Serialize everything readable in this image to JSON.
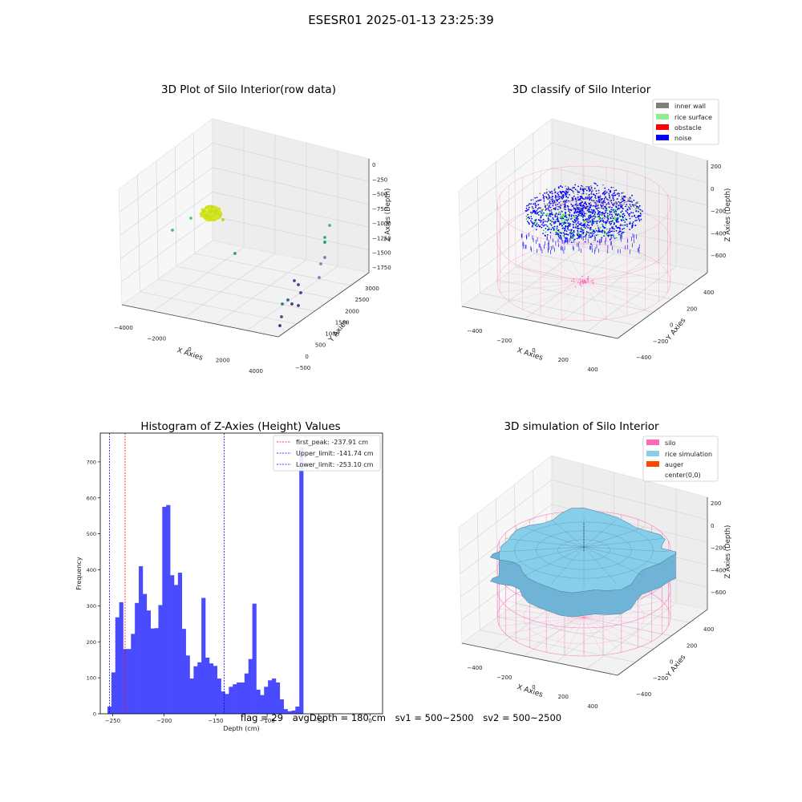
{
  "suptitle": "ESESR01 2025-01-13 23:25:39",
  "footer": {
    "flag": "flag = 29",
    "avg_depth": "avgDepth = 180 cm",
    "sv1": "sv1 = 500~2500",
    "sv2": "sv2 = 500~2500"
  },
  "colors": {
    "inner_wall": "#808080",
    "rice_surface": "#90ee90",
    "obstacle": "#ff0000",
    "noise": "#0000ff",
    "silo": "#ff69b4",
    "rice_simulation": "#87ceeb",
    "auger": "#ff4500",
    "histogram_bar": "#4a4aff"
  },
  "chart_data": [
    {
      "type": "scatter",
      "title": "3D Plot of Silo Interior(row data)",
      "xlabel": "X Axies",
      "ylabel": "Y Axies",
      "zlabel": "Z Axies (Depth)",
      "x_ticks": [
        "−4000",
        "−2000",
        "0",
        "2000",
        "4000"
      ],
      "y_ticks": [
        "−500",
        "0",
        "500",
        "1000",
        "1500",
        "2000",
        "2500",
        "3000"
      ],
      "z_ticks": [
        "0",
        "−250",
        "−500",
        "−750",
        "−1000",
        "−1250",
        "−1500",
        "−1750"
      ]
    },
    {
      "type": "scatter",
      "title": "3D classify of Silo Interior",
      "xlabel": "X Axies",
      "ylabel": "Y Axies",
      "zlabel": "Z Axies (Depth)",
      "x_ticks": [
        "−400",
        "−200",
        "0",
        "200",
        "400"
      ],
      "y_ticks": [
        "−400",
        "−200",
        "0",
        "200",
        "400"
      ],
      "z_ticks": [
        "200",
        "0",
        "−200",
        "−400",
        "−600"
      ],
      "legend": [
        "inner wall",
        "rice surface",
        "obstacle",
        "noise"
      ],
      "legend_loc": "top-right"
    },
    {
      "type": "bar",
      "title": "Histogram of Z-Axies (Height) Values",
      "xlabel": "Depth (cm)",
      "ylabel": "Frequency",
      "xlim": [
        -262,
        12
      ],
      "ylim": [
        0,
        780
      ],
      "x_ticks": [
        -250,
        -200,
        -150,
        -100,
        -50,
        0
      ],
      "x_tick_labels": [
        "−250",
        "−200",
        "−150",
        "−100",
        "−50",
        "0"
      ],
      "y_ticks": [
        0,
        100,
        200,
        300,
        400,
        500,
        600,
        700
      ],
      "y_tick_labels": [
        "0",
        "100",
        "200",
        "300",
        "400",
        "500",
        "600",
        "700"
      ],
      "bin_start": -255,
      "bin_width": 3.8,
      "values": [
        20,
        115,
        268,
        310,
        180,
        180,
        222,
        308,
        410,
        333,
        287,
        237,
        238,
        302,
        575,
        580,
        385,
        358,
        392,
        236,
        162,
        98,
        132,
        143,
        322,
        156,
        140,
        133,
        98,
        62,
        55,
        75,
        82,
        87,
        87,
        112,
        152,
        306,
        67,
        52,
        75,
        93,
        98,
        87,
        40,
        13,
        7,
        9,
        20,
        740
      ],
      "lines": [
        {
          "label": "first_peak: -237.91 cm",
          "x": -237.91,
          "color": "#ff0000"
        },
        {
          "label": "Upper_limit: -141.74 cm",
          "x": -141.74,
          "color": "#0000ff"
        },
        {
          "label": "Lower_limit: -253.10 cm",
          "x": -253.1,
          "color": "#0000ff"
        }
      ],
      "legend_loc": "top-right"
    },
    {
      "type": "area",
      "title": "3D simulation of Silo Interior",
      "xlabel": "X Axies",
      "ylabel": "Y Axies",
      "zlabel": "Z Axies (Depth)",
      "x_ticks": [
        "−400",
        "−200",
        "0",
        "200",
        "400"
      ],
      "y_ticks": [
        "−400",
        "−200",
        "0",
        "200",
        "400"
      ],
      "z_ticks": [
        "200",
        "0",
        "−200",
        "−400",
        "−600"
      ],
      "legend": [
        "silo",
        "rice simulation",
        "auger",
        "center(0,0)"
      ],
      "legend_loc": "top-right"
    }
  ]
}
